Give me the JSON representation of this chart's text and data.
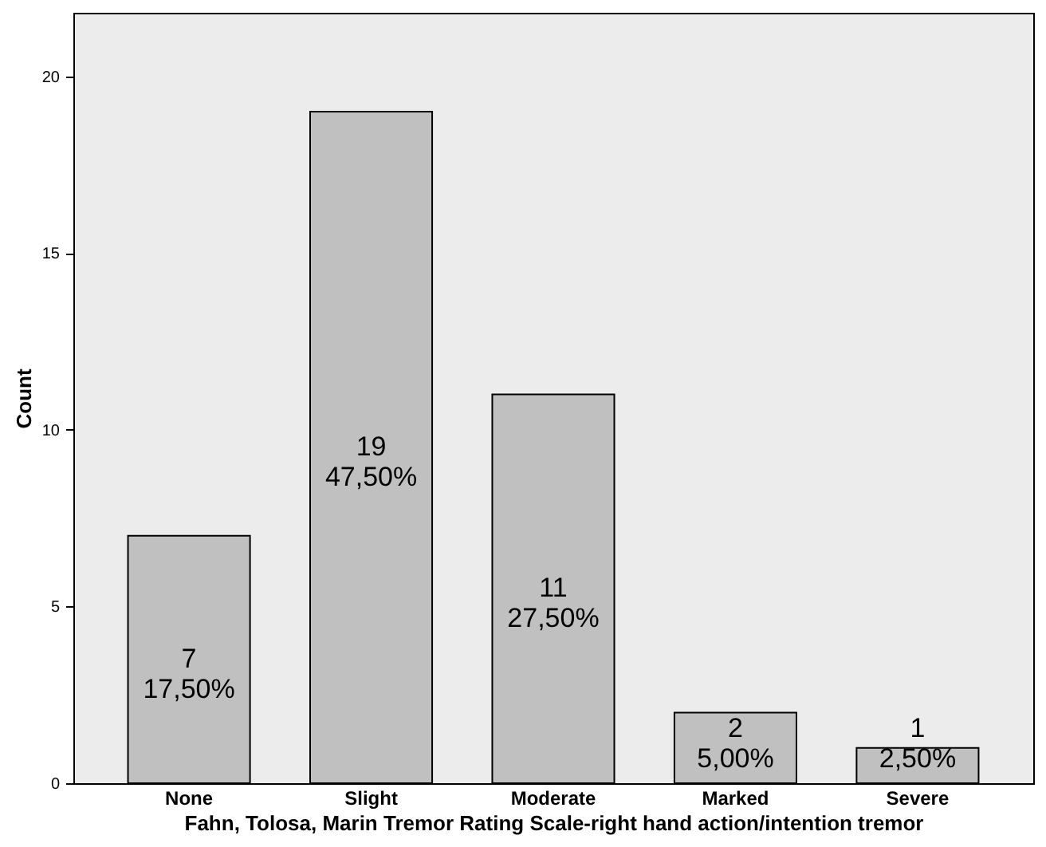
{
  "chart_data": {
    "type": "bar",
    "xlabel": "Fahn, Tolosa, Marin Tremor Rating Scale-right hand action/intention tremor",
    "ylabel": "Count",
    "categories": [
      "None",
      "Slight",
      "Moderate",
      "Marked",
      "Severe"
    ],
    "values": [
      7,
      19,
      11,
      2,
      1
    ],
    "value_labels": [
      "7\n17,50%",
      "19\n47,50%",
      "11\n27,50%",
      "2\n5,00%",
      "1\n2,50%"
    ],
    "color": "#c0c0c0",
    "ylim": [
      0,
      21.8
    ],
    "yticks": [
      0,
      5,
      10,
      15,
      20
    ],
    "grid": false
  }
}
